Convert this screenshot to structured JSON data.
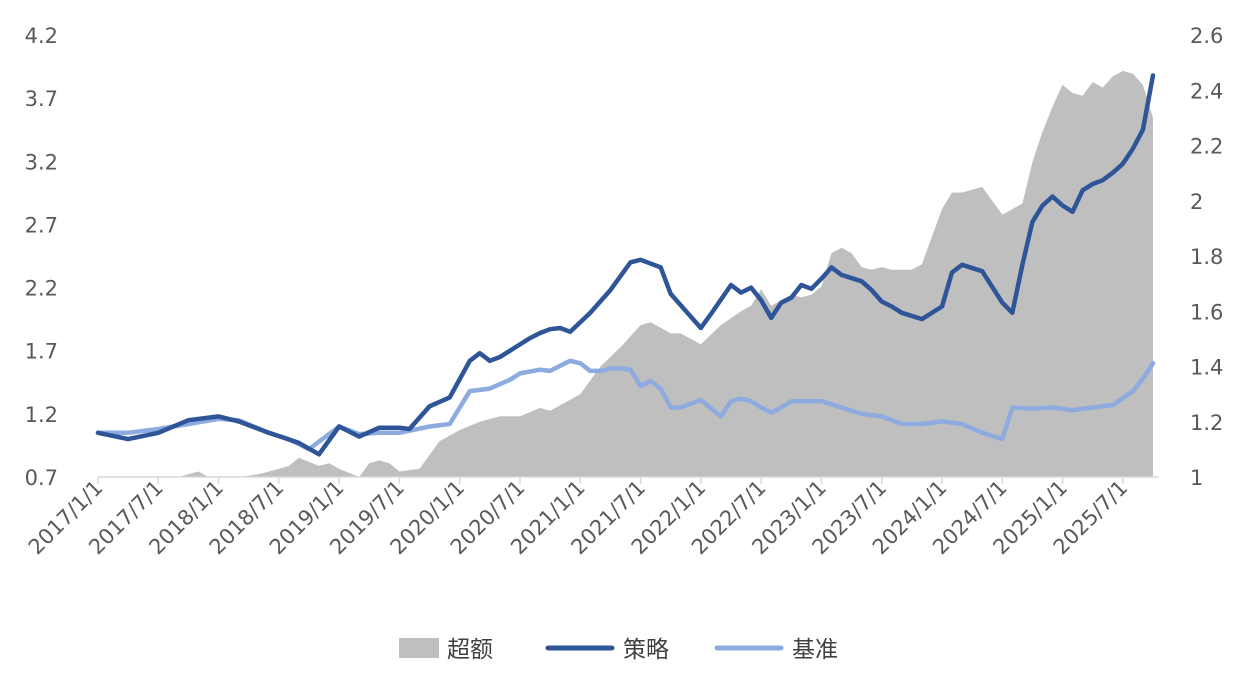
{
  "chart_data": {
    "type": "line",
    "title": "",
    "xlabel": "",
    "ylabel_left": "",
    "ylabel_right": "",
    "y_left": {
      "range": [
        0.7,
        4.2
      ],
      "ticks": [
        "4.2",
        "3.7",
        "3.2",
        "2.7",
        "2.2",
        "1.7",
        "1.2",
        "0.7"
      ]
    },
    "y_right": {
      "range": [
        1,
        2.6
      ],
      "ticks": [
        "2.6",
        "2.4",
        "2.2",
        "2",
        "1.8",
        "1.6",
        "1.4",
        "1.2",
        "1"
      ]
    },
    "x_tick_labels": [
      "2017/1/1",
      "2017/7/1",
      "2018/1/1",
      "2018/7/1",
      "2019/1/1",
      "2019/7/1",
      "2020/1/1",
      "2020/7/1",
      "2021/1/1",
      "2021/7/1",
      "2022/1/1",
      "2022/7/1",
      "2023/1/1",
      "2023/7/1",
      "2024/1/1",
      "2024/7/1",
      "2025/1/1",
      "2025/7/1"
    ],
    "x_range": [
      0,
      105.5
    ],
    "grid": false,
    "legend_position": "bottom",
    "colors": {
      "excess": "#bfbfbf",
      "strategy": "#2e5597",
      "benchmark": "#8eabdf"
    },
    "series": [
      {
        "name": "超额",
        "type": "area",
        "axis": "right",
        "color": "#bfbfbf",
        "x": [
          0,
          4,
          8,
          10,
          11,
          12,
          14,
          16,
          18,
          19,
          20,
          22,
          23,
          24,
          26,
          27,
          28,
          29,
          30,
          32,
          34,
          35,
          36,
          38,
          40,
          42,
          44,
          45,
          46,
          48,
          50,
          52,
          54,
          55,
          56,
          57,
          58,
          59,
          60,
          62,
          64,
          65,
          66,
          67,
          68,
          69,
          70,
          71,
          72,
          73,
          74,
          75,
          76,
          77,
          78,
          79,
          80,
          81,
          82,
          84,
          85,
          86,
          87,
          88,
          90,
          92,
          93,
          94,
          95,
          96,
          97,
          98,
          99,
          100,
          101,
          102,
          103,
          104,
          105
        ],
        "values": [
          1.0,
          1.0,
          1.0,
          1.02,
          1.0,
          1.0,
          1.0,
          1.01,
          1.03,
          1.04,
          1.07,
          1.04,
          1.05,
          1.03,
          1.0,
          1.05,
          1.06,
          1.05,
          1.02,
          1.03,
          1.13,
          1.15,
          1.17,
          1.2,
          1.22,
          1.22,
          1.25,
          1.24,
          1.26,
          1.3,
          1.4,
          1.47,
          1.55,
          1.56,
          1.54,
          1.52,
          1.52,
          1.5,
          1.48,
          1.55,
          1.6,
          1.62,
          1.68,
          1.62,
          1.64,
          1.66,
          1.65,
          1.66,
          1.69,
          1.81,
          1.83,
          1.81,
          1.76,
          1.75,
          1.76,
          1.75,
          1.75,
          1.75,
          1.77,
          1.97,
          2.03,
          2.03,
          2.04,
          2.05,
          1.95,
          1.99,
          2.14,
          2.25,
          2.34,
          2.42,
          2.39,
          2.38,
          2.43,
          2.41,
          2.45,
          2.47,
          2.46,
          2.42,
          2.3
        ]
      },
      {
        "name": "策略",
        "type": "line",
        "axis": "left",
        "color": "#2e5597",
        "x": [
          0,
          3,
          6,
          9,
          12,
          14,
          17,
          20,
          22,
          24,
          26,
          28,
          30,
          31,
          33,
          35,
          37,
          38,
          39,
          40,
          42,
          43,
          44,
          45,
          46,
          47,
          49,
          51,
          53,
          54,
          56,
          57,
          59,
          60,
          61,
          63,
          64,
          65,
          66,
          67,
          68,
          69,
          70,
          71,
          72,
          73,
          74,
          76,
          77,
          78,
          79,
          80,
          82,
          84,
          85,
          86,
          88,
          90,
          91,
          92,
          93,
          94,
          95,
          96,
          97,
          98,
          99,
          100,
          101,
          102,
          103,
          104,
          105
        ],
        "values": [
          1.05,
          1.0,
          1.05,
          1.15,
          1.18,
          1.14,
          1.05,
          0.97,
          0.88,
          1.1,
          1.02,
          1.09,
          1.09,
          1.08,
          1.26,
          1.33,
          1.62,
          1.68,
          1.62,
          1.65,
          1.75,
          1.8,
          1.84,
          1.87,
          1.88,
          1.85,
          2.0,
          2.18,
          2.4,
          2.42,
          2.36,
          2.15,
          1.97,
          1.88,
          1.99,
          2.22,
          2.16,
          2.2,
          2.1,
          1.96,
          2.08,
          2.12,
          2.22,
          2.19,
          2.27,
          2.36,
          2.3,
          2.25,
          2.18,
          2.09,
          2.05,
          2.0,
          1.95,
          2.05,
          2.32,
          2.38,
          2.33,
          2.08,
          2.0,
          2.38,
          2.72,
          2.85,
          2.92,
          2.85,
          2.8,
          2.97,
          3.02,
          3.05,
          3.11,
          3.18,
          3.3,
          3.45,
          3.88
        ]
      },
      {
        "name": "基准",
        "type": "line",
        "axis": "left",
        "color": "#8eabdf",
        "x": [
          0,
          3,
          6,
          9,
          12,
          14,
          17,
          19,
          21,
          24,
          26,
          28,
          30,
          33,
          35,
          37,
          39,
          41,
          42,
          44,
          45,
          47,
          48,
          49,
          50,
          51,
          52,
          53,
          54,
          55,
          56,
          57,
          58,
          60,
          62,
          63,
          64,
          65,
          66,
          67,
          68,
          69,
          70,
          72,
          74,
          76,
          78,
          80,
          82,
          84,
          86,
          88,
          90,
          91,
          93,
          95,
          97,
          99,
          101,
          103,
          104,
          105
        ],
        "values": [
          1.05,
          1.05,
          1.08,
          1.12,
          1.16,
          1.15,
          1.05,
          1.0,
          0.92,
          1.1,
          1.04,
          1.05,
          1.05,
          1.1,
          1.12,
          1.38,
          1.4,
          1.47,
          1.52,
          1.55,
          1.54,
          1.62,
          1.6,
          1.54,
          1.54,
          1.56,
          1.56,
          1.55,
          1.42,
          1.46,
          1.4,
          1.25,
          1.25,
          1.31,
          1.18,
          1.3,
          1.32,
          1.3,
          1.25,
          1.21,
          1.25,
          1.3,
          1.3,
          1.3,
          1.25,
          1.2,
          1.18,
          1.12,
          1.12,
          1.14,
          1.12,
          1.05,
          1.0,
          1.25,
          1.24,
          1.25,
          1.23,
          1.25,
          1.27,
          1.38,
          1.48,
          1.6
        ]
      }
    ]
  },
  "legend": [
    {
      "label": "超额",
      "kind": "area",
      "color": "#bfbfbf"
    },
    {
      "label": "策略",
      "kind": "line",
      "color": "#2e5597"
    },
    {
      "label": "基准",
      "kind": "line",
      "color": "#8eabdf"
    }
  ]
}
